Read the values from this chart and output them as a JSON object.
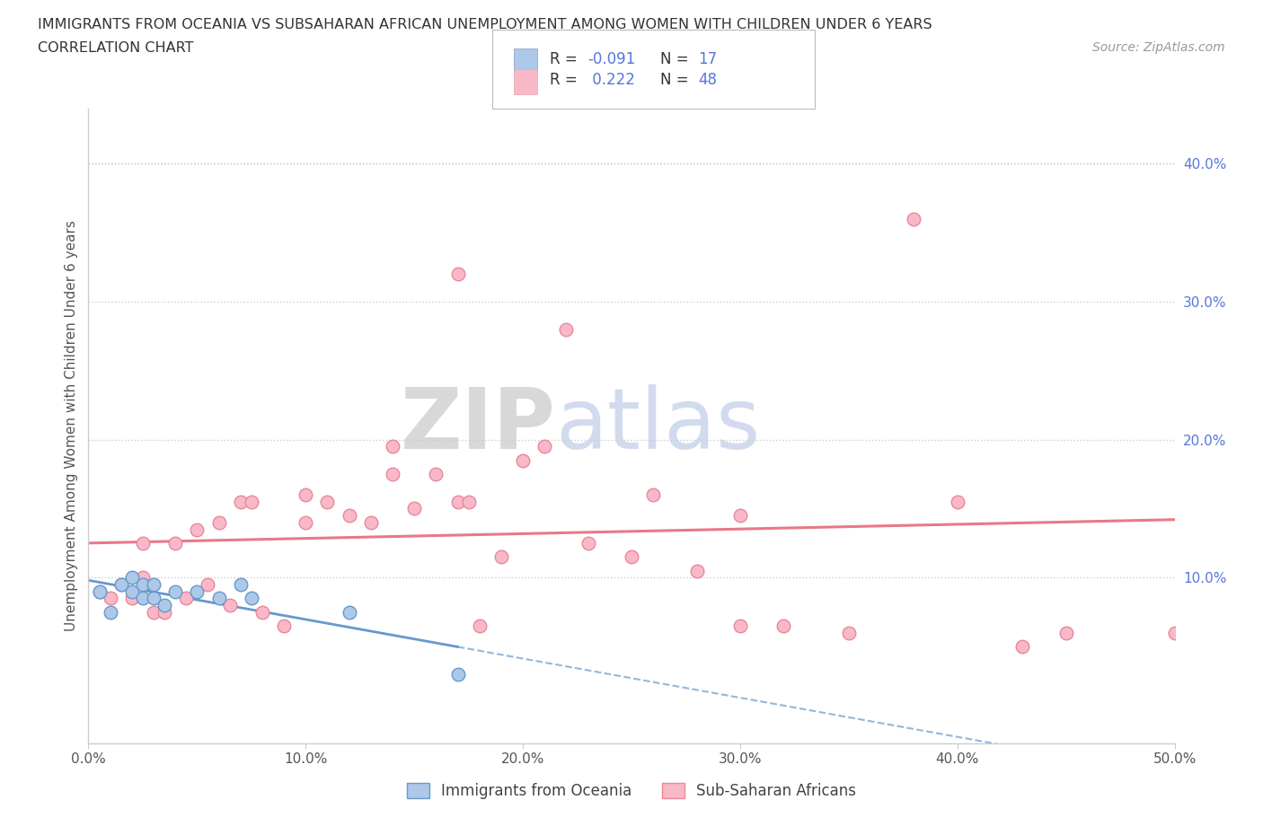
{
  "title_line1": "IMMIGRANTS FROM OCEANIA VS SUBSAHARAN AFRICAN UNEMPLOYMENT AMONG WOMEN WITH CHILDREN UNDER 6 YEARS",
  "title_line2": "CORRELATION CHART",
  "source": "Source: ZipAtlas.com",
  "ylabel": "Unemployment Among Women with Children Under 6 years",
  "xlim": [
    0.0,
    0.5
  ],
  "ylim": [
    -0.02,
    0.44
  ],
  "xticks": [
    0.0,
    0.1,
    0.2,
    0.3,
    0.4,
    0.5
  ],
  "yticks": [
    0.1,
    0.2,
    0.3,
    0.4
  ],
  "xtick_labels": [
    "0.0%",
    "10.0%",
    "20.0%",
    "30.0%",
    "40.0%",
    "50.0%"
  ],
  "ytick_labels": [
    "10.0%",
    "20.0%",
    "30.0%",
    "40.0%"
  ],
  "watermark_zip": "ZIP",
  "watermark_atlas": "atlas",
  "legend_r1_label": "R = -0.091",
  "legend_n1_label": "N =  17",
  "legend_r2_label": "R =  0.222",
  "legend_n2_label": "N = 48",
  "color_oceania_fill": "#adc8e8",
  "color_oceania_edge": "#6699cc",
  "color_subsaharan_fill": "#f9b8c8",
  "color_subsaharan_edge": "#e88898",
  "color_line_oceania": "#6699cc",
  "color_line_subsaharan": "#e87888",
  "color_ytick": "#5577dd",
  "background_color": "#ffffff",
  "oceania_x": [
    0.005,
    0.01,
    0.015,
    0.02,
    0.02,
    0.025,
    0.025,
    0.03,
    0.03,
    0.035,
    0.04,
    0.05,
    0.06,
    0.07,
    0.075,
    0.12,
    0.17
  ],
  "oceania_y": [
    0.09,
    0.075,
    0.095,
    0.09,
    0.1,
    0.085,
    0.095,
    0.085,
    0.095,
    0.08,
    0.09,
    0.09,
    0.085,
    0.095,
    0.085,
    0.075,
    0.03
  ],
  "subsaharan_x": [
    0.005,
    0.01,
    0.015,
    0.02,
    0.025,
    0.025,
    0.03,
    0.035,
    0.04,
    0.045,
    0.05,
    0.055,
    0.06,
    0.065,
    0.07,
    0.075,
    0.08,
    0.09,
    0.1,
    0.1,
    0.11,
    0.12,
    0.13,
    0.14,
    0.14,
    0.15,
    0.16,
    0.17,
    0.175,
    0.18,
    0.19,
    0.2,
    0.21,
    0.22,
    0.23,
    0.25,
    0.26,
    0.28,
    0.3,
    0.3,
    0.32,
    0.35,
    0.38,
    0.4,
    0.43,
    0.45,
    0.5,
    0.17
  ],
  "subsaharan_y": [
    0.09,
    0.085,
    0.095,
    0.085,
    0.1,
    0.125,
    0.075,
    0.075,
    0.125,
    0.085,
    0.135,
    0.095,
    0.14,
    0.08,
    0.155,
    0.155,
    0.075,
    0.065,
    0.14,
    0.16,
    0.155,
    0.145,
    0.14,
    0.175,
    0.195,
    0.15,
    0.175,
    0.155,
    0.155,
    0.065,
    0.115,
    0.185,
    0.195,
    0.28,
    0.125,
    0.115,
    0.16,
    0.105,
    0.145,
    0.065,
    0.065,
    0.06,
    0.36,
    0.155,
    0.05,
    0.06,
    0.06,
    0.32
  ]
}
